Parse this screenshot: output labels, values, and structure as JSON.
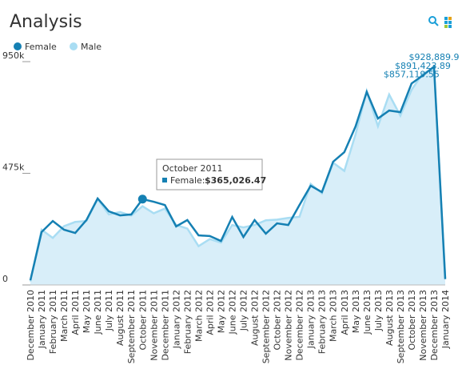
{
  "title": "Analysis",
  "chart_data": {
    "type": "area-line",
    "categories": [
      "December 2010",
      "January 2011",
      "February 2011",
      "March 2011",
      "April 2011",
      "May 2011",
      "June 2011",
      "July 2011",
      "August 2011",
      "September 2011",
      "October 2011",
      "November 2011",
      "December 2011",
      "January 2012",
      "February 2012",
      "March 2012",
      "April 2012",
      "May 2012",
      "June 2012",
      "July 2012",
      "August 2012",
      "September 2012",
      "October 2012",
      "November 2012",
      "December 2012",
      "January 2013",
      "February 2013",
      "March 2013",
      "April 2013",
      "May 2013",
      "June 2013",
      "July 2013",
      "August 2013",
      "September 2013",
      "October 2013",
      "November 2013",
      "December 2013",
      "January 2014"
    ],
    "series": [
      {
        "name": "Female",
        "color": "#1580b3",
        "values": [
          20000,
          225000,
          272000,
          235000,
          221000,
          276000,
          368000,
          313000,
          296000,
          300000,
          365026.47,
          354000,
          340000,
          249000,
          276000,
          211000,
          208000,
          187000,
          289000,
          204000,
          276000,
          218000,
          262000,
          255000,
          340000,
          422000,
          395000,
          524000,
          565000,
          674000,
          821000,
          708000,
          742000,
          735000,
          857119.55,
          891423.89,
          928889.9,
          25000
        ],
        "value_labels": [
          null,
          null,
          null,
          null,
          null,
          null,
          null,
          null,
          null,
          null,
          null,
          null,
          null,
          null,
          null,
          null,
          null,
          null,
          null,
          null,
          null,
          null,
          null,
          null,
          null,
          null,
          null,
          null,
          null,
          null,
          null,
          null,
          null,
          null,
          "$857,119.55",
          "$891,423.89",
          "$928,889.9",
          null
        ]
      },
      {
        "name": "Male",
        "color": "#a9ddf3",
        "values": [
          15000,
          235000,
          200000,
          250000,
          268000,
          272000,
          365000,
          300000,
          310000,
          295000,
          335000,
          305000,
          325000,
          255000,
          240000,
          165000,
          195000,
          180000,
          255000,
          245000,
          255000,
          275000,
          278000,
          285000,
          290000,
          430000,
          390000,
          520000,
          485000,
          640000,
          825000,
          675000,
          810000,
          720000,
          830000,
          900000,
          920000,
          30000
        ]
      }
    ],
    "ylim": [
      0,
      950000
    ],
    "yticks": [
      {
        "value": 0,
        "label": "0"
      },
      {
        "value": 475000,
        "label": "475k"
      },
      {
        "value": 950000,
        "label": "950k"
      }
    ],
    "legend": "top-left",
    "tooltip": {
      "title": "October 2011",
      "label": "Female:",
      "value": "$365,026.47"
    }
  }
}
